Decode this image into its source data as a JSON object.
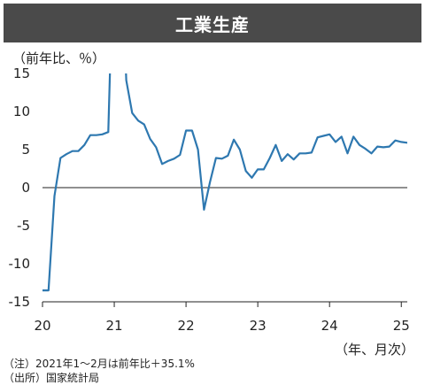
{
  "chart_data": {
    "type": "line",
    "title": "工業生産",
    "ylabel": "（前年比、％）",
    "xlabel": "（年、月次）",
    "ylim": [
      -15,
      15
    ],
    "yticks": [
      15,
      10,
      5,
      0,
      -5,
      -10,
      -15
    ],
    "ytick_labels": [
      "15",
      "10",
      "5",
      "0",
      "-5",
      "-10",
      "-15"
    ],
    "xticks": [
      2020,
      2021,
      2022,
      2023,
      2024,
      2025
    ],
    "xtick_labels": [
      "20",
      "21",
      "22",
      "23",
      "24",
      "25"
    ],
    "grid": false,
    "colors": {
      "line": "#2e78b0",
      "axis": "#222222"
    },
    "series": [
      {
        "x": [
          "2020-01",
          "2020-02",
          "2020-03",
          "2020-04",
          "2020-05",
          "2020-06",
          "2020-07",
          "2020-08",
          "2020-09",
          "2020-10",
          "2020-11",
          "2020-12",
          "2021-01",
          "2021-02",
          "2021-03",
          "2021-04",
          "2021-05",
          "2021-06",
          "2021-07",
          "2021-08",
          "2021-09",
          "2021-10",
          "2021-11",
          "2021-12",
          "2022-01",
          "2022-02",
          "2022-03",
          "2022-04",
          "2022-05",
          "2022-06",
          "2022-07",
          "2022-08",
          "2022-09",
          "2022-10",
          "2022-11",
          "2022-12",
          "2023-01",
          "2023-02",
          "2023-03",
          "2023-04",
          "2023-05",
          "2023-06",
          "2023-07",
          "2023-08",
          "2023-09",
          "2023-10",
          "2023-11",
          "2023-12",
          "2024-01",
          "2024-02",
          "2024-03",
          "2024-04",
          "2024-05",
          "2024-06",
          "2024-07",
          "2024-08",
          "2024-09",
          "2024-10",
          "2024-11",
          "2024-12",
          "2025-01",
          "2025-02"
        ],
        "values": [
          -13.5,
          -13.5,
          -1.1,
          3.9,
          4.4,
          4.8,
          4.8,
          5.6,
          6.9,
          6.9,
          7.0,
          7.3,
          35.1,
          35.1,
          14.1,
          9.8,
          8.8,
          8.3,
          6.4,
          5.3,
          3.1,
          3.5,
          3.8,
          4.3,
          7.5,
          7.5,
          5.0,
          -2.9,
          0.7,
          3.9,
          3.8,
          4.2,
          6.3,
          5.0,
          2.2,
          1.3,
          2.4,
          2.4,
          3.9,
          5.6,
          3.5,
          4.4,
          3.7,
          4.5,
          4.5,
          4.6,
          6.6,
          6.8,
          7.0,
          6.0,
          6.7,
          4.5,
          6.7,
          5.6,
          5.1,
          4.5,
          5.4,
          5.3,
          5.4,
          6.2,
          6.0,
          5.9
        ]
      }
    ]
  },
  "notes": [
    "（注）2021年1～2月は前年比＋35.1%",
    "（出所）国家統計局"
  ]
}
